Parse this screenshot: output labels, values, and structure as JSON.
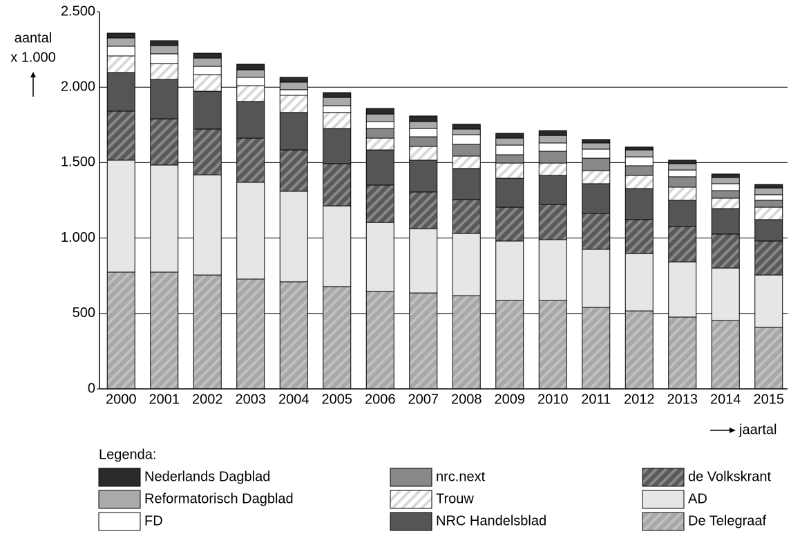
{
  "chart_data": {
    "type": "stacked-bar",
    "ylabel": [
      "aantal",
      "x 1.000"
    ],
    "xlabel": "jaartal",
    "legend_title": "Legenda:",
    "categories": [
      "2000",
      "2001",
      "2002",
      "2003",
      "2004",
      "2005",
      "2006",
      "2007",
      "2008",
      "2009",
      "2010",
      "2011",
      "2012",
      "2013",
      "2014",
      "2015"
    ],
    "ylim": [
      0,
      2500
    ],
    "yticks": [
      0,
      500,
      {
        "value": 1000,
        "label": "1.000"
      },
      {
        "value": 1500,
        "label": "1.500"
      },
      {
        "value": 2000,
        "label": "2.000"
      },
      {
        "value": 2500,
        "label": "2.500"
      }
    ],
    "grid": true,
    "series": [
      {
        "name": "De Telegraaf",
        "color": "#a8a8a8",
        "hatch": true,
        "values": [
          774,
          774,
          755,
          728,
          710,
          678,
          646,
          636,
          618,
          586,
          586,
          540,
          517,
          476,
          453,
          408
        ]
      },
      {
        "name": "AD",
        "color": "#e6e6e6",
        "hatch": false,
        "values": [
          742,
          710,
          664,
          641,
          600,
          535,
          457,
          426,
          412,
          394,
          403,
          385,
          380,
          366,
          348,
          347
        ]
      },
      {
        "name": "de Volkskrant",
        "color": "#5a5a5a",
        "hatch": true,
        "values": [
          325,
          306,
          303,
          293,
          274,
          280,
          248,
          243,
          225,
          224,
          234,
          238,
          225,
          234,
          225,
          225
        ]
      },
      {
        "name": "NRC Handelsblad",
        "color": "#555555",
        "hatch": false,
        "values": [
          256,
          261,
          251,
          243,
          248,
          233,
          233,
          211,
          206,
          192,
          192,
          197,
          206,
          174,
          169,
          142
        ]
      },
      {
        "name": "Trouw",
        "color": "#ffffff",
        "hatch": true,
        "values": [
          110,
          106,
          110,
          105,
          114,
          106,
          78,
          91,
          82,
          101,
          82,
          87,
          87,
          87,
          69,
          82
        ]
      },
      {
        "name": "nrc.next",
        "color": "#888888",
        "hatch": false,
        "values": [
          null,
          null,
          null,
          null,
          null,
          null,
          64,
          64,
          78,
          55,
          78,
          82,
          64,
          69,
          50,
          46
        ]
      },
      {
        "name": "FD",
        "color": "#ffffff",
        "hatch": false,
        "values": [
          64,
          64,
          55,
          55,
          37,
          45,
          46,
          55,
          64,
          64,
          55,
          60,
          59,
          45,
          46,
          37
        ]
      },
      {
        "name": "Reformatorisch Dagblad",
        "color": "#aaaaaa",
        "hatch": false,
        "values": [
          55,
          55,
          55,
          50,
          50,
          55,
          50,
          46,
          37,
          46,
          50,
          41,
          46,
          42,
          41,
          45
        ]
      },
      {
        "name": "Nederlands Dagblad",
        "color": "#2a2a2a",
        "hatch": false,
        "values": [
          32,
          32,
          32,
          37,
          32,
          32,
          37,
          37,
          32,
          32,
          32,
          23,
          19,
          23,
          23,
          23
        ]
      }
    ]
  }
}
